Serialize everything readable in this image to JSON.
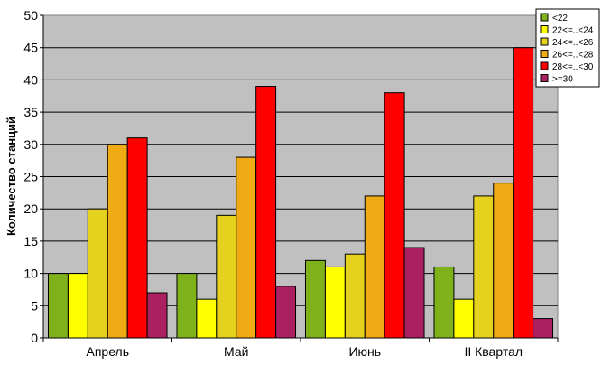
{
  "chart_data": {
    "type": "bar",
    "title": "",
    "xlabel": "",
    "ylabel": "Количество станций",
    "categories": [
      "Апрель",
      "Май",
      "Июнь",
      "II Квартал"
    ],
    "ylim": [
      0,
      50
    ],
    "yticks": [
      "0",
      "5",
      "10",
      "15",
      "20",
      "25",
      "30",
      "35",
      "40",
      "45",
      "50"
    ],
    "grid": true,
    "legend_position": "top-right",
    "plot_background": "#c0c0c0",
    "series": [
      {
        "name": "<22",
        "color": "#7fb21a",
        "values": [
          10,
          10,
          12,
          11
        ]
      },
      {
        "name": "22<=..<24",
        "color": "#ffff00",
        "values": [
          10,
          6,
          11,
          6
        ]
      },
      {
        "name": "24<=..<26",
        "color": "#e6d21e",
        "values": [
          20,
          19,
          13,
          22
        ]
      },
      {
        "name": "26<=..<28",
        "color": "#f0aa14",
        "values": [
          30,
          28,
          22,
          24
        ]
      },
      {
        "name": "28<=..<30",
        "color": "#ff0000",
        "values": [
          31,
          39,
          38,
          45
        ]
      },
      {
        "name": ">=30",
        "color": "#aa2060",
        "values": [
          7,
          8,
          14,
          3
        ]
      }
    ]
  }
}
